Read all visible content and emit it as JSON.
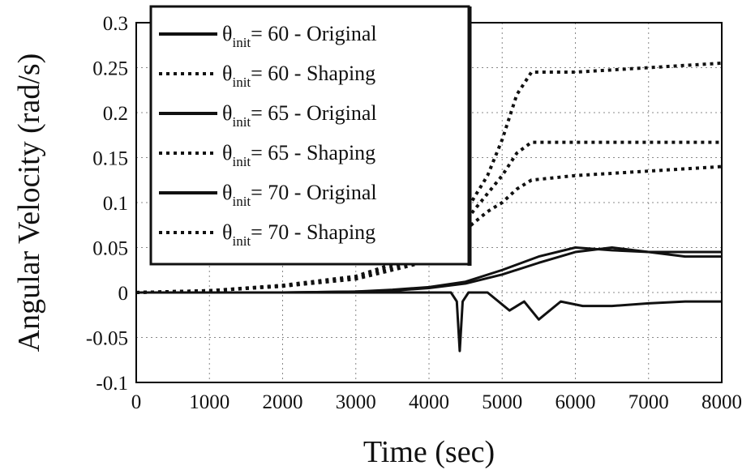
{
  "chart_data": {
    "type": "line",
    "xlabel": "Time (sec)",
    "ylabel": "Angular Velocity (rad/s)",
    "xlim": [
      0,
      8000
    ],
    "ylim": [
      -0.1,
      0.3
    ],
    "x_ticks": [
      "0",
      "1000",
      "2000",
      "3000",
      "4000",
      "5000",
      "6000",
      "7000",
      "8000"
    ],
    "y_ticks": [
      "-0.1",
      "-0.05",
      "0",
      "0.05",
      "0.1",
      "0.15",
      "0.2",
      "0.25",
      "0.3"
    ],
    "grid": true,
    "legend_position": "top-left",
    "legend": [
      {
        "symbol": "θ",
        "sub": "init",
        "text": "= 60 - Original",
        "style": "solid"
      },
      {
        "symbol": "θ",
        "sub": "init",
        "text": "= 60 - Shaping",
        "style": "dotted"
      },
      {
        "symbol": "θ",
        "sub": "init",
        "text": "= 65 - Original",
        "style": "solid"
      },
      {
        "symbol": "θ",
        "sub": "init",
        "text": "= 65 - Shaping",
        "style": "dotted"
      },
      {
        "symbol": "θ",
        "sub": "init",
        "text": "= 70 - Original",
        "style": "solid"
      },
      {
        "symbol": "θ",
        "sub": "init",
        "text": "= 70 - Shaping",
        "style": "dotted"
      }
    ],
    "series": [
      {
        "style": "solid",
        "x": [
          0,
          1000,
          2000,
          3000,
          4000,
          4300,
          4380,
          4420,
          4460,
          4540,
          4800,
          5100,
          5300,
          5500,
          5800,
          6100,
          6500,
          7000,
          7500,
          8000
        ],
        "y": [
          0,
          0,
          0,
          0,
          0,
          0,
          -0.01,
          -0.065,
          -0.01,
          0,
          0,
          -0.02,
          -0.01,
          -0.03,
          -0.01,
          -0.015,
          -0.015,
          -0.012,
          -0.01,
          -0.01
        ]
      },
      {
        "style": "solid",
        "x": [
          0,
          2000,
          3000,
          3500,
          4000,
          4500,
          5000,
          5500,
          6000,
          6500,
          7000,
          7500,
          8000
        ],
        "y": [
          0,
          0,
          0.001,
          0.003,
          0.006,
          0.012,
          0.025,
          0.04,
          0.05,
          0.047,
          0.045,
          0.045,
          0.045
        ]
      },
      {
        "style": "solid",
        "x": [
          0,
          2000,
          3000,
          3500,
          4000,
          4500,
          5000,
          5500,
          6000,
          6500,
          7000,
          7500,
          8000
        ],
        "y": [
          0,
          0,
          0.001,
          0.002,
          0.005,
          0.01,
          0.02,
          0.033,
          0.045,
          0.05,
          0.045,
          0.04,
          0.04
        ]
      },
      {
        "style": "dotted",
        "x": [
          0,
          1000,
          2000,
          3000,
          4000,
          4500,
          4800,
          5000,
          5200,
          5400,
          6000,
          7000,
          8000
        ],
        "y": [
          0,
          0.002,
          0.008,
          0.018,
          0.045,
          0.09,
          0.13,
          0.17,
          0.22,
          0.245,
          0.245,
          0.25,
          0.255
        ]
      },
      {
        "style": "dotted",
        "x": [
          0,
          1000,
          2000,
          3000,
          4000,
          4500,
          4800,
          5000,
          5200,
          5400,
          6000,
          7000,
          8000
        ],
        "y": [
          0,
          0.002,
          0.007,
          0.016,
          0.04,
          0.08,
          0.11,
          0.13,
          0.155,
          0.167,
          0.167,
          0.167,
          0.167
        ]
      },
      {
        "style": "dotted",
        "x": [
          0,
          1000,
          2000,
          3000,
          4000,
          4500,
          4800,
          5000,
          5200,
          5400,
          6000,
          7000,
          8000
        ],
        "y": [
          0,
          0.002,
          0.007,
          0.015,
          0.035,
          0.07,
          0.09,
          0.1,
          0.115,
          0.125,
          0.13,
          0.135,
          0.14
        ]
      }
    ]
  }
}
